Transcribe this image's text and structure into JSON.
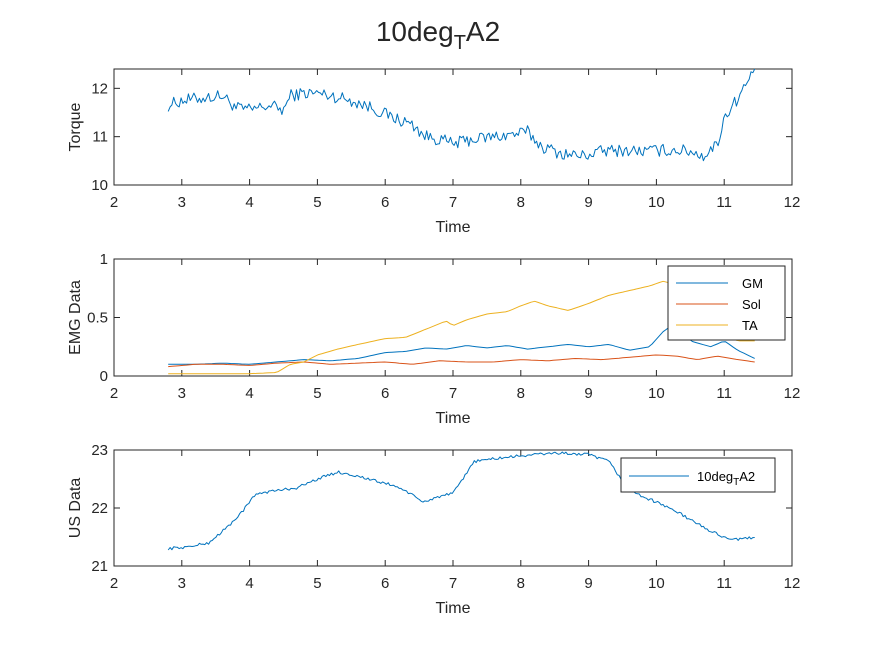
{
  "title": {
    "main": "10deg",
    "sub": "T",
    "suffix": "A2"
  },
  "chart_data": [
    {
      "type": "line",
      "ylabel": "Torque",
      "xlabel": "Time",
      "xlim": [
        2,
        12
      ],
      "ylim": [
        10,
        12.4
      ],
      "xticks": [
        2,
        3,
        4,
        5,
        6,
        7,
        8,
        9,
        10,
        11,
        12
      ],
      "yticks": [
        10,
        11,
        12
      ],
      "noise": 0.13,
      "series": [
        {
          "name": "Torque",
          "color": "#0072BD",
          "x": [
            2.8,
            3.0,
            3.3,
            3.6,
            3.8,
            4.0,
            4.3,
            4.5,
            4.6,
            4.8,
            5.0,
            5.2,
            5.5,
            5.8,
            6.1,
            6.4,
            6.6,
            6.8,
            7.0,
            7.3,
            7.6,
            7.9,
            8.1,
            8.3,
            8.6,
            8.9,
            9.2,
            9.5,
            9.8,
            10.1,
            10.3,
            10.5,
            10.7,
            10.9,
            11.0,
            11.2,
            11.4,
            11.45
          ],
          "y": [
            11.65,
            11.75,
            11.8,
            11.85,
            11.6,
            11.55,
            11.65,
            11.55,
            11.85,
            11.9,
            11.9,
            11.85,
            11.75,
            11.6,
            11.4,
            11.25,
            11.0,
            10.95,
            10.85,
            10.95,
            11.0,
            11.05,
            11.1,
            10.8,
            10.65,
            10.6,
            10.7,
            10.72,
            10.7,
            10.72,
            10.72,
            10.7,
            10.6,
            10.85,
            11.4,
            11.8,
            12.25,
            12.4
          ]
        }
      ]
    },
    {
      "type": "line",
      "ylabel": "EMG Data",
      "xlabel": "Time",
      "xlim": [
        2,
        12
      ],
      "ylim": [
        0,
        1
      ],
      "xticks": [
        2,
        3,
        4,
        5,
        6,
        7,
        8,
        9,
        10,
        11,
        12
      ],
      "yticks": [
        0,
        0.5,
        1
      ],
      "noise": 0.0,
      "legend": {
        "position": "top-right",
        "entries": [
          "GM",
          "Sol",
          "TA"
        ]
      },
      "series": [
        {
          "name": "GM",
          "color": "#0072BD",
          "x": [
            2.8,
            3.2,
            3.6,
            4.0,
            4.4,
            4.8,
            5.2,
            5.6,
            6.0,
            6.3,
            6.6,
            6.9,
            7.2,
            7.5,
            7.8,
            8.1,
            8.4,
            8.7,
            9.0,
            9.3,
            9.6,
            9.9,
            10.1,
            10.3,
            10.5,
            10.8,
            11.0,
            11.2,
            11.45
          ],
          "y": [
            0.1,
            0.1,
            0.11,
            0.1,
            0.12,
            0.14,
            0.13,
            0.15,
            0.2,
            0.21,
            0.24,
            0.23,
            0.26,
            0.24,
            0.26,
            0.23,
            0.25,
            0.27,
            0.25,
            0.27,
            0.22,
            0.25,
            0.38,
            0.46,
            0.3,
            0.25,
            0.3,
            0.22,
            0.15
          ]
        },
        {
          "name": "Sol",
          "color": "#D95319",
          "x": [
            2.8,
            3.2,
            3.6,
            4.0,
            4.4,
            4.8,
            5.2,
            5.6,
            6.0,
            6.4,
            6.8,
            7.2,
            7.6,
            8.0,
            8.4,
            8.8,
            9.2,
            9.6,
            10.0,
            10.3,
            10.6,
            10.9,
            11.2,
            11.45
          ],
          "y": [
            0.08,
            0.1,
            0.1,
            0.09,
            0.11,
            0.12,
            0.1,
            0.11,
            0.12,
            0.1,
            0.13,
            0.12,
            0.12,
            0.14,
            0.13,
            0.15,
            0.14,
            0.16,
            0.18,
            0.17,
            0.14,
            0.17,
            0.14,
            0.12
          ]
        },
        {
          "name": "TA",
          "color": "#EDB120",
          "x": [
            2.8,
            3.5,
            4.0,
            4.4,
            4.6,
            4.8,
            5.0,
            5.3,
            5.6,
            6.0,
            6.3,
            6.6,
            6.9,
            7.0,
            7.2,
            7.5,
            7.8,
            8.0,
            8.2,
            8.4,
            8.7,
            9.0,
            9.3,
            9.6,
            9.9,
            10.1,
            10.3,
            10.5,
            10.8,
            11.0,
            11.2,
            11.45
          ],
          "y": [
            0.02,
            0.02,
            0.02,
            0.03,
            0.1,
            0.12,
            0.18,
            0.23,
            0.27,
            0.32,
            0.33,
            0.4,
            0.47,
            0.43,
            0.48,
            0.53,
            0.55,
            0.6,
            0.64,
            0.6,
            0.56,
            0.62,
            0.69,
            0.73,
            0.77,
            0.81,
            0.78,
            0.68,
            0.47,
            0.35,
            0.3,
            0.3
          ]
        }
      ]
    },
    {
      "type": "line",
      "ylabel": "US Data",
      "xlabel": "Time",
      "xlim": [
        2,
        12
      ],
      "ylim": [
        21,
        23
      ],
      "xticks": [
        2,
        3,
        4,
        5,
        6,
        7,
        8,
        9,
        10,
        11,
        12
      ],
      "yticks": [
        21,
        22,
        23
      ],
      "noise": 0.025,
      "legend": {
        "position": "top-right",
        "entries": [
          "10deg_TA2"
        ]
      },
      "series": [
        {
          "name": "10deg_TA2",
          "color": "#0072BD",
          "x": [
            2.8,
            3.1,
            3.4,
            3.7,
            3.9,
            4.1,
            4.4,
            4.7,
            5.0,
            5.3,
            5.6,
            5.9,
            6.1,
            6.3,
            6.55,
            6.8,
            7.0,
            7.15,
            7.3,
            7.6,
            8.0,
            8.5,
            9.0,
            9.3,
            9.6,
            9.9,
            10.2,
            10.5,
            10.8,
            11.0,
            11.2,
            11.45
          ],
          "y": [
            21.3,
            21.33,
            21.4,
            21.7,
            21.95,
            22.25,
            22.3,
            22.35,
            22.5,
            22.62,
            22.55,
            22.45,
            22.4,
            22.3,
            22.1,
            22.2,
            22.25,
            22.5,
            22.8,
            22.85,
            22.9,
            22.95,
            22.92,
            22.8,
            22.3,
            22.15,
            22.0,
            21.8,
            21.6,
            21.5,
            21.45,
            21.5
          ]
        }
      ]
    }
  ]
}
